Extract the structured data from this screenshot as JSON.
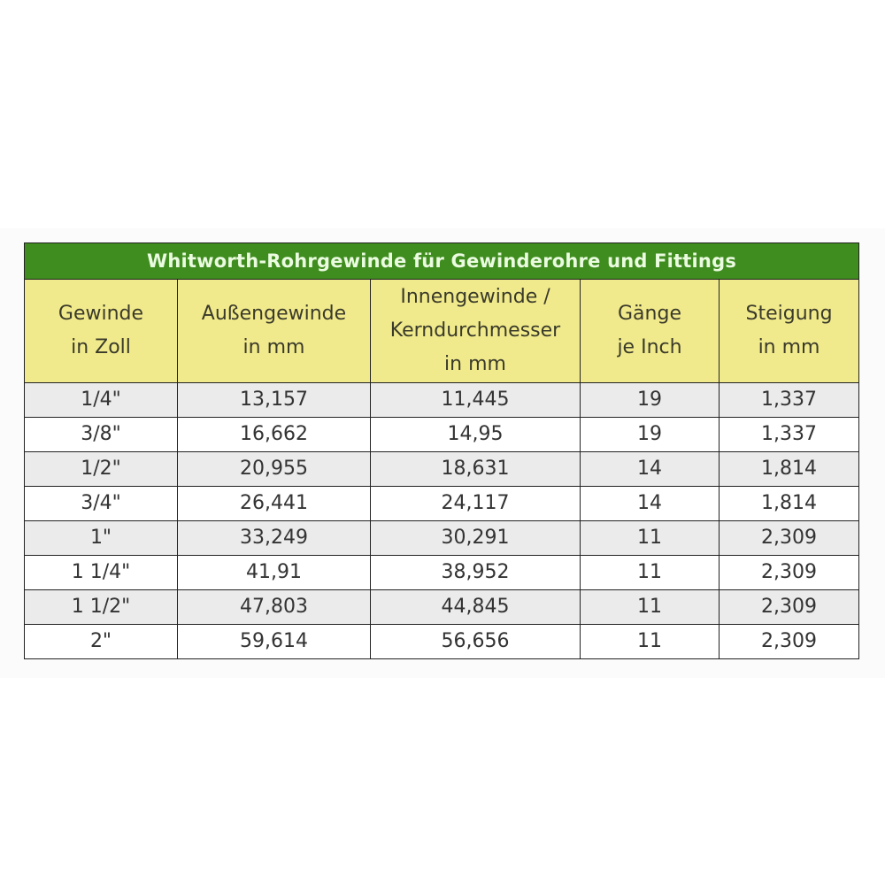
{
  "table": {
    "title": "Whitworth-Rohrgewinde für Gewinderohre und Fittings",
    "headers": [
      [
        "Gewinde",
        "in Zoll"
      ],
      [
        "Außengewinde",
        "in mm"
      ],
      [
        "Innengewinde /",
        "Kerndurchmesser",
        "in mm"
      ],
      [
        "Gänge",
        "je Inch"
      ],
      [
        "Steigung",
        "in mm"
      ]
    ],
    "rows": [
      [
        "1/4\"",
        "13,157",
        "11,445",
        "19",
        "1,337"
      ],
      [
        "3/8\"",
        "16,662",
        "14,95",
        "19",
        "1,337"
      ],
      [
        "1/2\"",
        "20,955",
        "18,631",
        "14",
        "1,814"
      ],
      [
        "3/4\"",
        "26,441",
        "24,117",
        "14",
        "1,814"
      ],
      [
        "1\"",
        "33,249",
        "30,291",
        "11",
        "2,309"
      ],
      [
        "1 1/4\"",
        "41,91",
        "38,952",
        "11",
        "2,309"
      ],
      [
        "1 1/2\"",
        "47,803",
        "44,845",
        "11",
        "2,309"
      ],
      [
        "2\"",
        "59,614",
        "56,656",
        "11",
        "2,309"
      ]
    ]
  },
  "colors": {
    "title_bg": "#3f8c1f",
    "header_bg": "#f1ea8c",
    "alt_row_bg": "#ebebeb"
  }
}
